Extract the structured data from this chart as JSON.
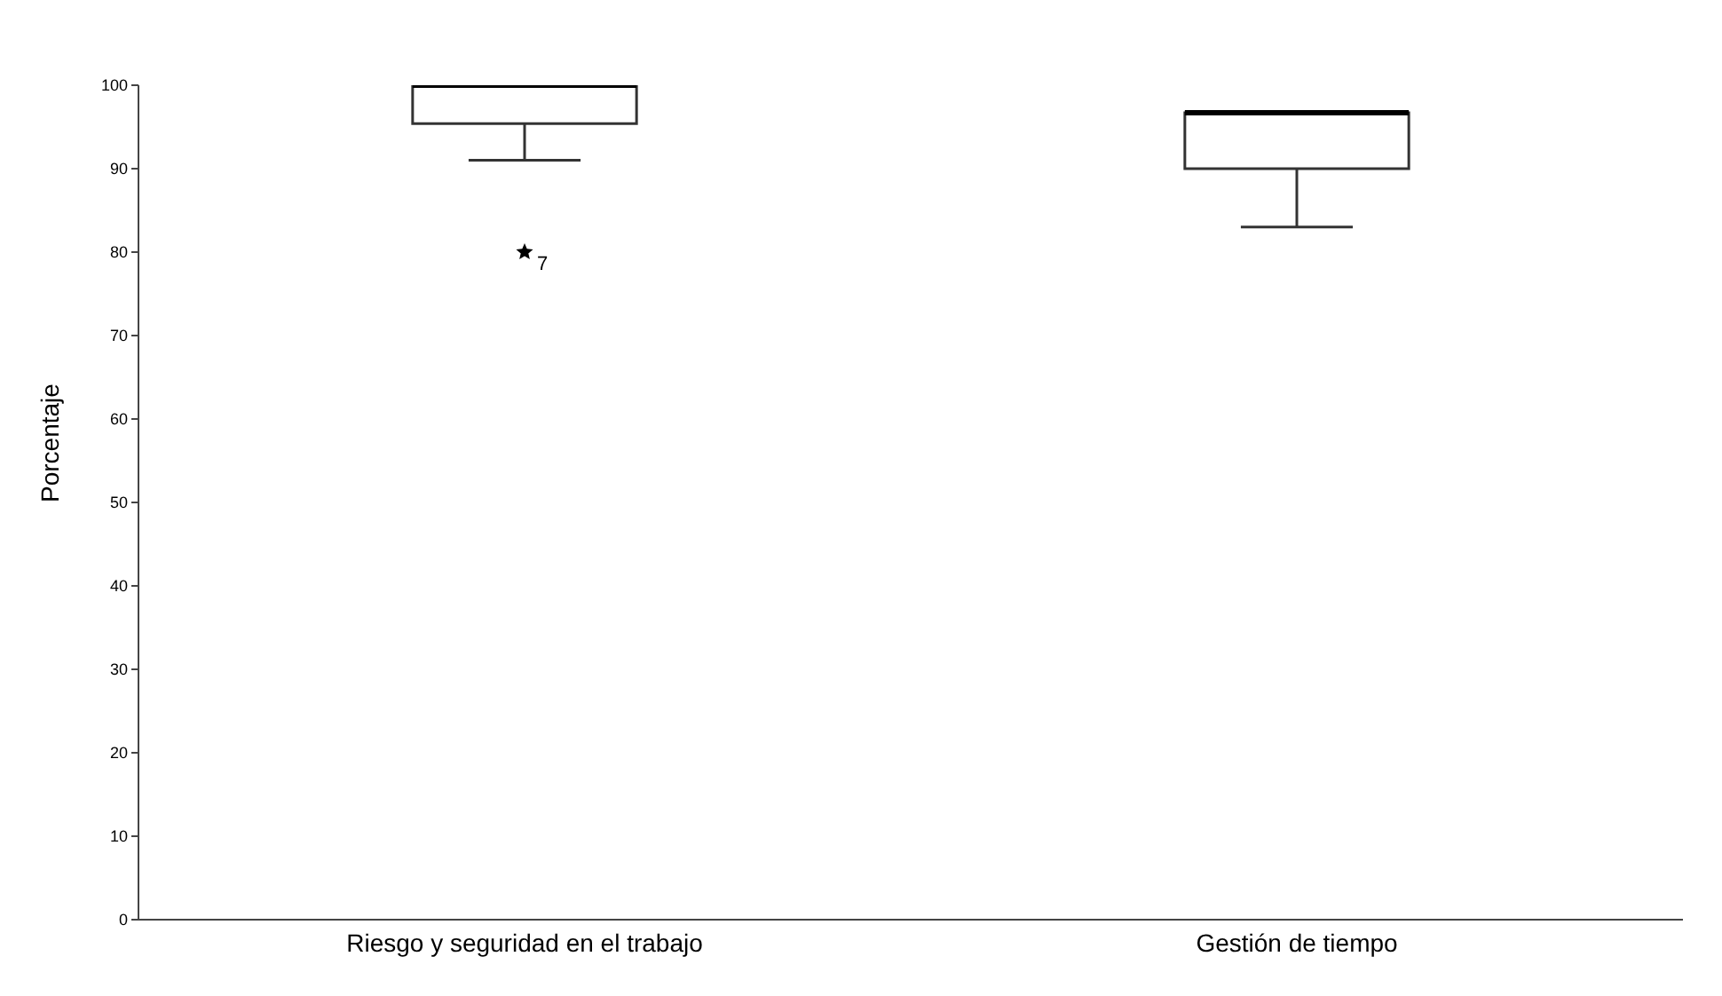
{
  "chart_data": {
    "type": "box",
    "ylabel": "Porcentaje",
    "categories": [
      "Riesgo y seguridad en el trabajo",
      "Gestión de tiempo"
    ],
    "boxes": [
      {
        "low": 91,
        "q1": 95.4,
        "median": 100,
        "q3": 100,
        "high": 100,
        "outliers": [
          80
        ]
      },
      {
        "low": 83,
        "q1": 90,
        "median": 96.7,
        "q3": 96.7,
        "high": 96.7
      }
    ],
    "ylim": [
      0,
      100
    ],
    "yticks": [
      0,
      10,
      20,
      30,
      40,
      50,
      60,
      70,
      80,
      90,
      100
    ],
    "marker": "star",
    "annotations": [
      "7"
    ]
  }
}
